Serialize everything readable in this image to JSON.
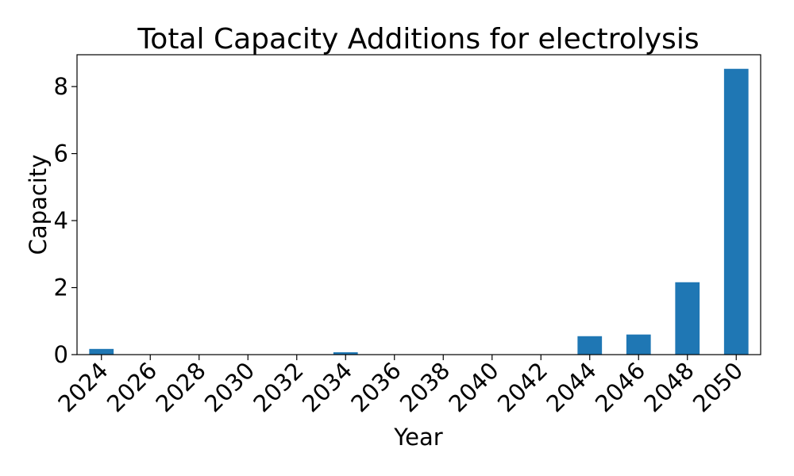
{
  "chart_data": {
    "type": "bar",
    "title": "Total Capacity Additions for electrolysis",
    "xlabel": "Year",
    "ylabel": "Capacity",
    "categories": [
      "2024",
      "2026",
      "2028",
      "2030",
      "2032",
      "2034",
      "2036",
      "2038",
      "2040",
      "2042",
      "2044",
      "2046",
      "2048",
      "2050"
    ],
    "values": [
      0.17,
      0.0,
      0.0,
      0.0,
      0.0,
      0.07,
      0.0,
      0.0,
      0.0,
      0.0,
      0.55,
      0.6,
      2.16,
      8.53
    ],
    "ylim": [
      0,
      8.95
    ],
    "yticks": [
      0,
      2,
      4,
      6,
      8
    ],
    "grid": false,
    "bar_color": "#1f77b4"
  }
}
